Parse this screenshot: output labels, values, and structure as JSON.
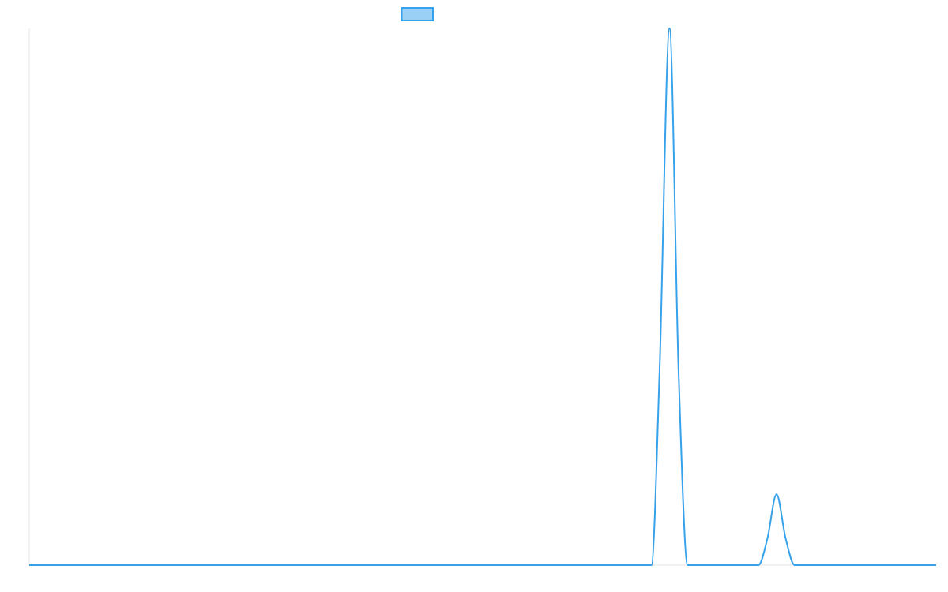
{
  "chart_data": {
    "type": "line",
    "title": "",
    "xlabel": "",
    "ylabel": "",
    "xlim": [
      0,
      100
    ],
    "ylim": [
      0,
      100
    ],
    "grid": false,
    "legend": {
      "placement": "top-center",
      "entries": [
        ""
      ]
    },
    "series": [
      {
        "name": "",
        "color": "#36a2eb",
        "fill_color": "#9ad0f5",
        "points": [
          [
            0,
            0
          ],
          [
            68.6,
            0
          ],
          [
            69.5,
            36
          ],
          [
            70.6,
            100
          ],
          [
            71.6,
            36
          ],
          [
            72.6,
            0
          ],
          [
            80.4,
            0
          ],
          [
            81.4,
            5
          ],
          [
            82.4,
            13.2
          ],
          [
            83.4,
            5
          ],
          [
            84.4,
            0
          ],
          [
            100,
            0
          ]
        ]
      }
    ]
  }
}
